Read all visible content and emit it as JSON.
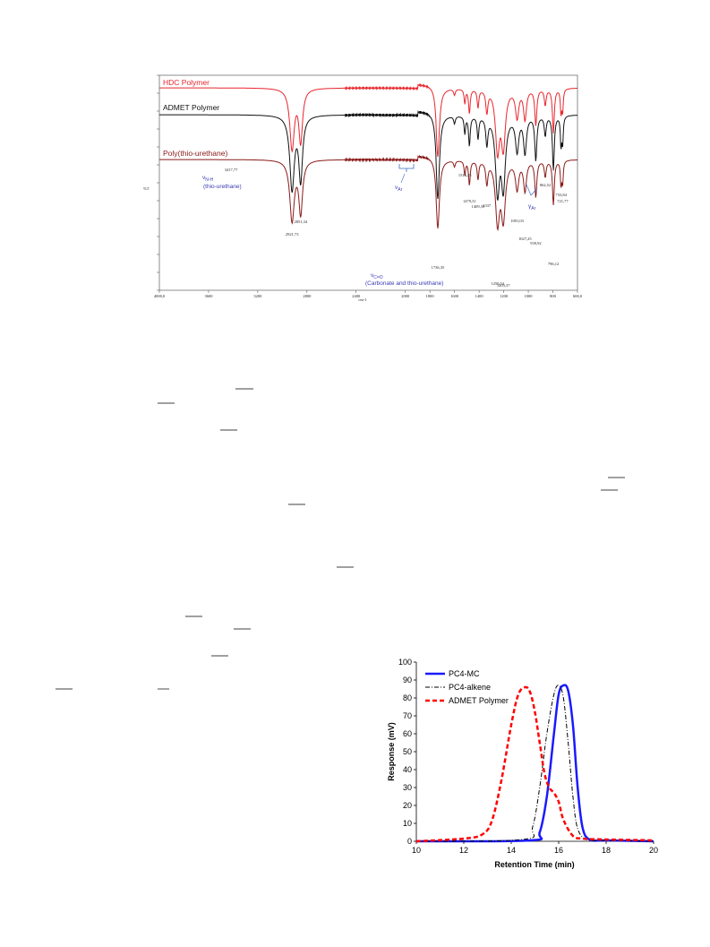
{
  "chart_data": [
    {
      "type": "line",
      "xlabel": "cm-1",
      "ylabel": "%T",
      "xlim": [
        4000,
        600
      ],
      "x_ticks": [
        "4000,0",
        "3600",
        "3200",
        "2800",
        "2400",
        "2000",
        "1800",
        "1600",
        "1400",
        "1200",
        "1000",
        "800",
        "600,0"
      ],
      "series": [
        {
          "name": "HDC Polymer",
          "color": "#e8262d"
        },
        {
          "name": "ADMET Polymer",
          "color": "#111111"
        },
        {
          "name": "Poly(thio-urethane)",
          "color": "#8b1a1a"
        }
      ],
      "peak_labels": [
        "3417,77",
        "2921,73",
        "2851,34",
        "1736,35",
        "1516,25",
        "1479,31",
        "1409,39",
        "1337",
        "1250,54",
        "1203,37",
        "1091,03",
        "1027,25",
        "939,92",
        "862,52",
        "796,12",
        "733,84",
        "721,77"
      ],
      "annotations": [
        {
          "symbol": "ν",
          "sub": "N-H",
          "note": "(thio-urethane)"
        },
        {
          "symbol": "ν",
          "sub": "Ar"
        },
        {
          "symbol": "ν",
          "sub": "C=O",
          "note": "(Carbonate and thio-urethane)"
        },
        {
          "symbol": "γ",
          "sub": "Ar"
        }
      ]
    },
    {
      "type": "line",
      "xlabel": "Retention Time (min)",
      "ylabel": "Response (mV)",
      "xlim": [
        10,
        20
      ],
      "ylim": [
        0,
        100
      ],
      "x_ticks": [
        "10",
        "12",
        "14",
        "16",
        "18",
        "20"
      ],
      "y_ticks": [
        "0",
        "10",
        "20",
        "30",
        "40",
        "50",
        "60",
        "70",
        "80",
        "90",
        "100"
      ],
      "legend_position": "top-left",
      "series": [
        {
          "name": "PC4-MC",
          "color": "#1a1aff",
          "style": "solid",
          "x": [
            10,
            14.8,
            15.2,
            15.5,
            15.8,
            16.0,
            16.2,
            16.4,
            16.6,
            16.8,
            17.0,
            17.3,
            18,
            20
          ],
          "y": [
            0,
            0.5,
            5,
            25,
            60,
            82,
            87,
            84,
            65,
            30,
            8,
            1,
            0.5,
            0
          ]
        },
        {
          "name": "PC4-alkene",
          "color": "#000000",
          "style": "dashdot",
          "x": [
            10,
            14.5,
            14.9,
            15.2,
            15.5,
            15.8,
            16.0,
            16.2,
            16.4,
            16.6,
            16.8,
            17.2,
            18,
            20
          ],
          "y": [
            0,
            1,
            8,
            30,
            60,
            82,
            87,
            80,
            55,
            25,
            7,
            1,
            0.5,
            0
          ]
        },
        {
          "name": "ADMET Polymer",
          "color": "#ff0000",
          "style": "dashed",
          "x": [
            10,
            12,
            12.8,
            13.2,
            13.6,
            14.0,
            14.3,
            14.6,
            14.8,
            15.0,
            15.2,
            15.4,
            15.6,
            15.8,
            16.0,
            16.2,
            16.6,
            17.0,
            18,
            20
          ],
          "y": [
            0,
            1.5,
            4,
            12,
            35,
            65,
            82,
            86,
            83,
            72,
            55,
            38,
            30,
            27,
            22,
            12,
            3,
            1.5,
            1,
            0.5
          ]
        }
      ]
    }
  ]
}
